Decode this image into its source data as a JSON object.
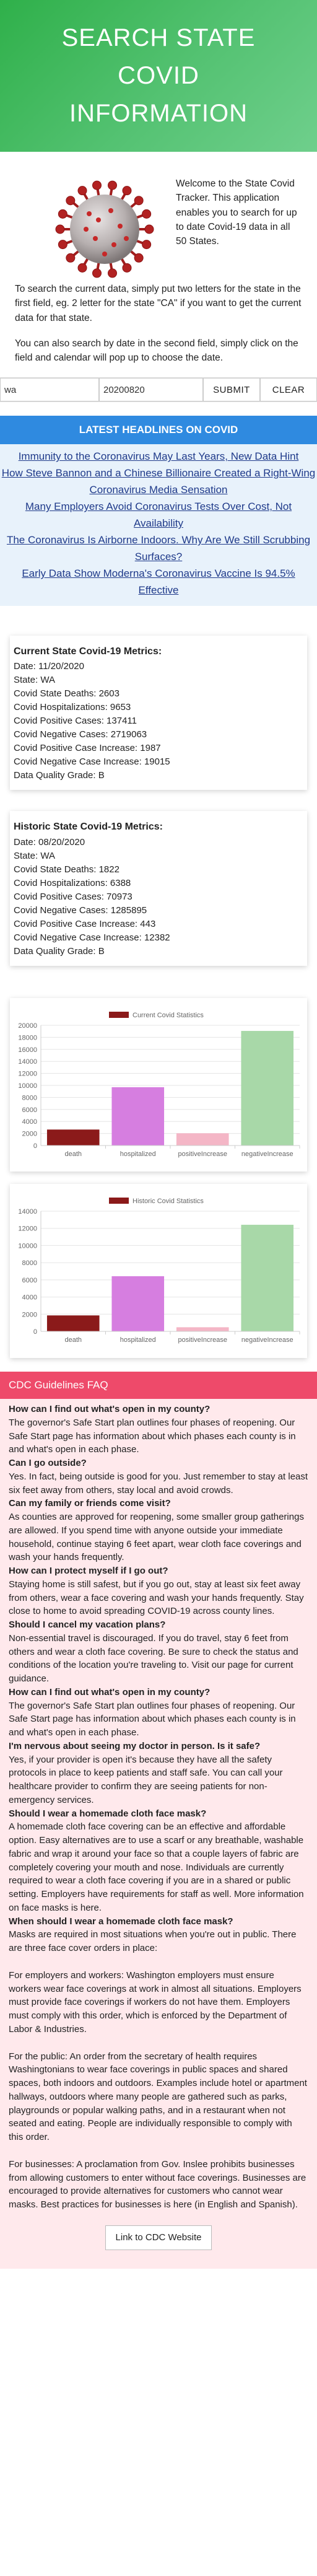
{
  "header": {
    "title_lines": [
      "SEARCH STATE",
      "COVID",
      "INFORMATION"
    ]
  },
  "intro": {
    "p1": "Welcome to the State Covid Tracker. This application enables you to search for up to date Covid-19 data in all 50 States.",
    "p2": "To search the current data, simply put two letters for the state in the first field, eg. 2 letter for the state \"CA\" if you want to get the current data for that state.",
    "p3": "You can also search by date in the second field, simply click on the field and calendar will pop up to choose the date."
  },
  "search": {
    "state_value": "wa",
    "date_value": "20200820",
    "submit_label": "SUBMIT",
    "clear_label": "CLEAR"
  },
  "headlines": {
    "title": "LATEST HEADLINES ON COVID",
    "items": [
      "Immunity to the Coronavirus May Last Years, New Data Hint",
      "How Steve Bannon and a Chinese Billionaire Created a Right-Wing Coronavirus Media Sensation",
      "Many Employers Avoid Coronavirus Tests Over Cost, Not Availability",
      "The Coronavirus Is Airborne Indoors. Why Are We Still Scrubbing Surfaces?",
      "Early Data Show Moderna's Coronavirus Vaccine Is 94.5% Effective"
    ]
  },
  "current": {
    "title": "Current State Covid-19 Metrics:",
    "rows": [
      "Date: 11/20/2020",
      "State: WA",
      "Covid State Deaths: 2603",
      "Covid Hospitalizations: 9653",
      "Covid Positive Cases: 137411",
      "Covid Negative Cases: 2719063",
      "Covid Positive Case Increase: 1987",
      "Covid Negative Case Increase: 19015",
      "Data Quality Grade: B"
    ]
  },
  "historic": {
    "title": "Historic State Covid-19 Metrics:",
    "rows": [
      "Date: 08/20/2020",
      "State: WA",
      "Covid State Deaths: 1822",
      "Covid Hospitalizations: 6388",
      "Covid Positive Cases: 70973",
      "Covid Negative Cases: 1285895",
      "Covid Positive Case Increase: 443",
      "Covid Negative Case Increase: 12382",
      "Data Quality Grade: B"
    ]
  },
  "chart_data": [
    {
      "type": "bar",
      "legend": "Current Covid Statistics",
      "categories": [
        "death",
        "hospitalized",
        "positiveIncrease",
        "negativeIncrease"
      ],
      "values": [
        2603,
        9653,
        1987,
        19015
      ],
      "ylim": [
        0,
        20000
      ],
      "yticks": [
        0,
        2000,
        4000,
        6000,
        8000,
        10000,
        12000,
        14000,
        16000,
        18000,
        20000
      ],
      "colors": [
        "#8b1a1a",
        "#d67ee0",
        "#f4b6c6",
        "#a8d8a8"
      ],
      "grid": true,
      "legend_position": "top"
    },
    {
      "type": "bar",
      "legend": "Historic Covid Statistics",
      "categories": [
        "death",
        "hospitalized",
        "positiveIncrease",
        "negativeIncrease"
      ],
      "values": [
        1822,
        6388,
        443,
        12382
      ],
      "ylim": [
        0,
        14000
      ],
      "yticks": [
        0,
        2000,
        4000,
        6000,
        8000,
        10000,
        12000,
        14000
      ],
      "colors": [
        "#8b1a1a",
        "#d67ee0",
        "#f4b6c6",
        "#a8d8a8"
      ],
      "grid": true,
      "legend_position": "top"
    }
  ],
  "faq": {
    "title": "CDC Guidelines FAQ",
    "items": [
      {
        "q": "How can I find out what's open in my county?",
        "a": "The governor's Safe Start plan outlines four phases of reopening. Our Safe Start page has information about which phases each county is in and what's open in each phase."
      },
      {
        "q": "Can I go outside?",
        "a": "Yes. In fact, being outside is good for you. Just remember to stay at least six feet away from others, stay local and avoid crowds."
      },
      {
        "q": "Can my family or friends come visit?",
        "a": "As counties are approved for reopening, some smaller group gatherings are allowed. If you spend time with anyone outside your immediate household, continue staying 6 feet apart, wear cloth face coverings and wash your hands frequently."
      },
      {
        "q": "How can I protect myself if I go out?",
        "a": "Staying home is still safest, but if you go out, stay at least six feet away from others, wear a face covering and wash your hands frequently. Stay close to home to avoid spreading COVID-19 across county lines."
      },
      {
        "q": "Should I cancel my vacation plans?",
        "a": "Non-essential travel is discouraged. If you do travel, stay 6 feet from others and wear a cloth face covering. Be sure to check the status and conditions of the location you're traveling to. Visit our page for current guidance."
      },
      {
        "q": "How can I find out what's open in my county?",
        "a": "The governor's Safe Start plan outlines four phases of reopening. Our Safe Start page has information about which phases each county is in and what's open in each phase."
      },
      {
        "q": "I'm nervous about seeing my doctor in person. Is it safe?",
        "a": "Yes, if your provider is open it's because they have all the safety protocols in place to keep patients and staff safe. You can call your healthcare provider to confirm they are seeing patients for non-emergency services."
      },
      {
        "q": "Should I wear a homemade cloth face mask?",
        "a": "A homemade cloth face covering can be an effective and affordable option. Easy alternatives are to use a scarf or any breathable, washable fabric and wrap it around your face so that a couple layers of fabric are completely covering your mouth and nose. Individuals are currently required to wear a cloth face covering if you are in a shared or public setting. Employers have requirements for staff as well. More information on face masks is here."
      },
      {
        "q": "When should I wear a homemade cloth face mask?",
        "a": "Masks are required in most situations when you're out in public. There are three face cover orders in place:"
      }
    ],
    "paras": [
      "For employers and workers: Washington employers must ensure workers wear face coverings at work in almost all situations. Employers must provide face coverings if workers do not have them. Employers must comply with this order, which is enforced by the Department of Labor & Industries.",
      "For the public: An order from the secretary of health requires Washingtonians to wear face coverings in public spaces and shared spaces, both indoors and outdoors. Examples include hotel or apartment hallways, outdoors where many people are gathered such as parks, playgrounds or popular walking paths, and in a restaurant when not seated and eating. People are individually responsible to comply with this order.",
      "For businesses: A proclamation from Gov. Inslee prohibits businesses from allowing customers to enter without face coverings. Businesses are encouraged to provide alternatives for customers who cannot wear masks. Best practices for businesses is here (in English and Spanish)."
    ],
    "link_label": "Link to CDC Website"
  }
}
